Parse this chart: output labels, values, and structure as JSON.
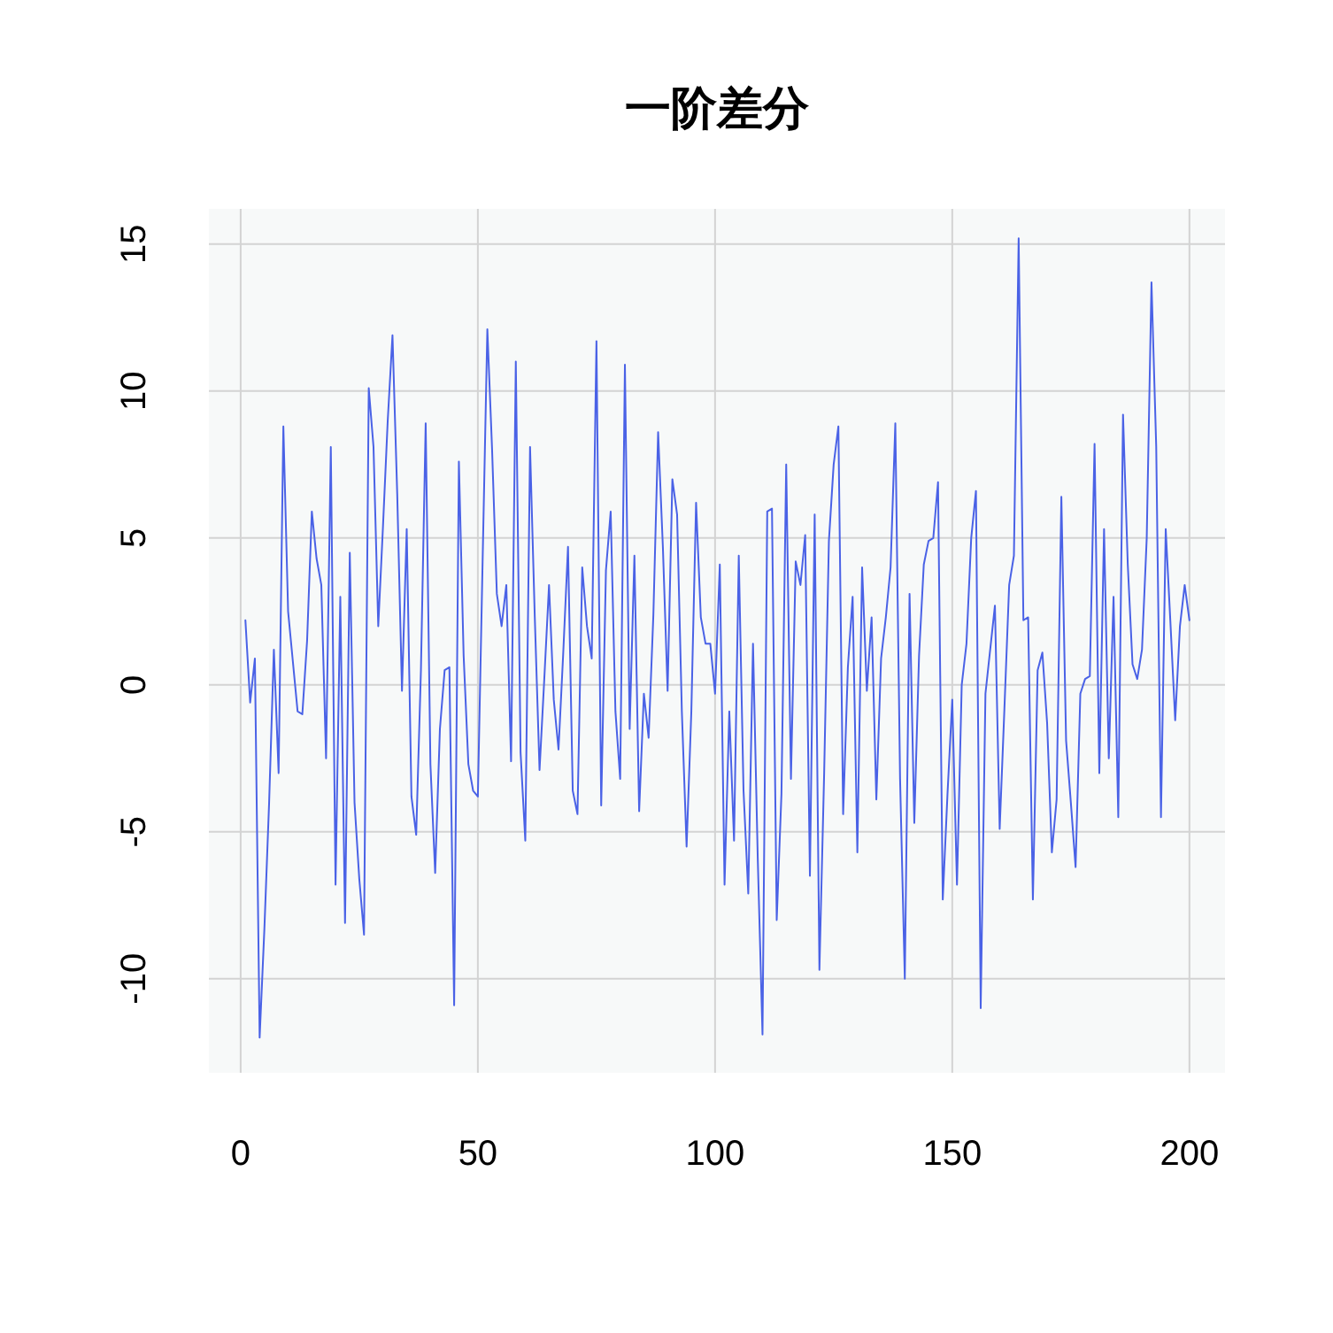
{
  "chart_data": {
    "type": "line",
    "title": "一阶差分",
    "x": [
      1,
      2,
      3,
      4,
      5,
      6,
      7,
      8,
      9,
      10,
      11,
      12,
      13,
      14,
      15,
      16,
      17,
      18,
      19,
      20,
      21,
      22,
      23,
      24,
      25,
      26,
      27,
      28,
      29,
      30,
      31,
      32,
      33,
      34,
      35,
      36,
      37,
      38,
      39,
      40,
      41,
      42,
      43,
      44,
      45,
      46,
      47,
      48,
      49,
      50,
      51,
      52,
      53,
      54,
      55,
      56,
      57,
      58,
      59,
      60,
      61,
      62,
      63,
      64,
      65,
      66,
      67,
      68,
      69,
      70,
      71,
      72,
      73,
      74,
      75,
      76,
      77,
      78,
      79,
      80,
      81,
      82,
      83,
      84,
      85,
      86,
      87,
      88,
      89,
      90,
      91,
      92,
      93,
      94,
      95,
      96,
      97,
      98,
      99,
      100,
      101,
      102,
      103,
      104,
      105,
      106,
      107,
      108,
      109,
      110,
      111,
      112,
      113,
      114,
      115,
      116,
      117,
      118,
      119,
      120,
      121,
      122,
      123,
      124,
      125,
      126,
      127,
      128,
      129,
      130,
      131,
      132,
      133,
      134,
      135,
      136,
      137,
      138,
      139,
      140,
      141,
      142,
      143,
      144,
      145,
      146,
      147,
      148,
      149,
      150,
      151,
      152,
      153,
      154,
      155,
      156,
      157,
      158,
      159,
      160,
      161,
      162,
      163,
      164,
      165,
      166,
      167,
      168,
      169,
      170,
      171,
      172,
      173,
      174,
      175,
      176,
      177,
      178,
      179,
      180,
      181,
      182,
      183,
      184,
      185,
      186,
      187,
      188,
      189,
      190,
      191,
      192,
      193,
      194,
      195,
      196,
      197,
      198,
      199,
      200
    ],
    "values": [
      2.2,
      -0.6,
      0.9,
      -12.0,
      -8.3,
      -4.0,
      1.2,
      -3.0,
      8.8,
      2.5,
      0.8,
      -0.9,
      -1.0,
      1.5,
      5.9,
      4.3,
      3.4,
      -2.5,
      8.1,
      -6.8,
      3.0,
      -8.1,
      4.5,
      -4.0,
      -6.6,
      -8.5,
      10.1,
      8.1,
      2.0,
      5.4,
      9.0,
      11.9,
      6.5,
      -0.2,
      5.3,
      -3.8,
      -5.1,
      0.5,
      8.9,
      -2.7,
      -6.4,
      -1.5,
      0.5,
      0.6,
      -10.9,
      7.6,
      1.0,
      -2.7,
      -3.6,
      -3.8,
      4.2,
      12.1,
      8.0,
      3.1,
      2.0,
      3.4,
      -2.6,
      11.0,
      -2.3,
      -5.3,
      8.1,
      2.3,
      -2.9,
      0.2,
      3.4,
      -0.5,
      -2.2,
      1.1,
      4.7,
      -3.6,
      -4.4,
      4.0,
      2.0,
      0.9,
      11.7,
      -4.1,
      3.9,
      5.9,
      -0.9,
      -3.2,
      10.9,
      -1.5,
      4.4,
      -4.3,
      -0.3,
      -1.8,
      2.4,
      8.6,
      4.7,
      -0.2,
      7.0,
      5.8,
      -0.9,
      -5.5,
      -0.9,
      6.2,
      2.3,
      1.4,
      1.4,
      -0.3,
      4.1,
      -6.8,
      -0.9,
      -5.3,
      4.4,
      -3.6,
      -7.1,
      1.4,
      -5.9,
      -11.9,
      5.9,
      6.0,
      -8.0,
      -3.7,
      7.5,
      -3.2,
      4.2,
      3.4,
      5.1,
      -6.5,
      5.8,
      -9.7,
      -3.0,
      4.9,
      7.5,
      8.8,
      -4.4,
      0.6,
      3.0,
      -5.7,
      4.0,
      -0.2,
      2.3,
      -3.9,
      0.9,
      2.3,
      4.0,
      8.9,
      -3.2,
      -10.0,
      3.1,
      -4.7,
      1.0,
      4.1,
      4.9,
      5.0,
      6.9,
      -7.3,
      -3.7,
      -0.5,
      -6.8,
      0.0,
      1.4,
      5.0,
      6.6,
      -11.0,
      -0.3,
      1.2,
      2.7,
      -4.9,
      -0.8,
      3.4,
      4.4,
      15.2,
      2.2,
      2.3,
      -7.3,
      0.5,
      1.1,
      -1.3,
      -5.7,
      -3.9,
      6.4,
      -1.9,
      -4.0,
      -6.2,
      -0.3,
      0.2,
      0.3,
      8.2,
      -3.0,
      5.3,
      -2.5,
      3.0,
      -4.5,
      9.2,
      4.1,
      0.7,
      0.2,
      1.2,
      5.0,
      13.7,
      8.1,
      -4.5,
      5.3,
      2.1,
      -1.2,
      2.0,
      3.4,
      2.2
    ],
    "color": "#4a62e6",
    "xlim": [
      -6.7,
      207.5
    ],
    "ylim": [
      -13.2,
      16.2
    ],
    "xticks": [
      0,
      50,
      100,
      150,
      200
    ],
    "yticks": [
      -10,
      -5,
      0,
      5,
      10,
      15
    ],
    "grid": true,
    "line_style": "solid"
  }
}
